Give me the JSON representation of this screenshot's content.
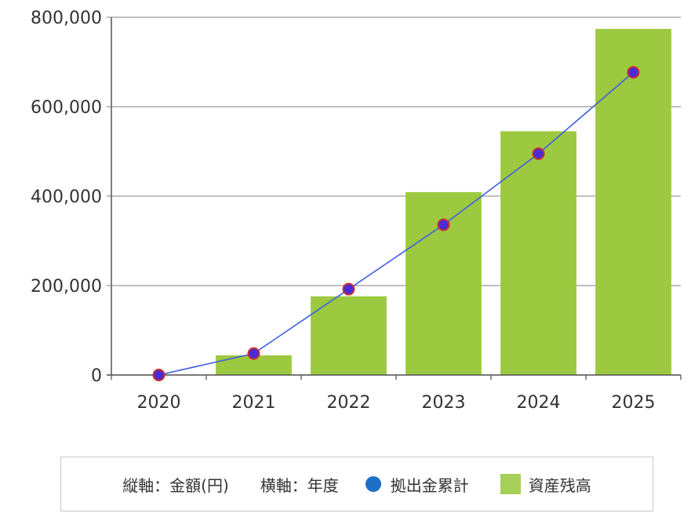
{
  "chart_data": {
    "type": "bar",
    "categories": [
      "2020",
      "2021",
      "2022",
      "2023",
      "2024",
      "2025"
    ],
    "series": [
      {
        "name": "資産残高",
        "kind": "bar",
        "color": "#9dc940",
        "values": [
          0,
          44000,
          176000,
          409000,
          545000,
          774000
        ]
      },
      {
        "name": "拠出金累計",
        "kind": "line",
        "color": "#3f5fe0",
        "marker_color": "#4b2bd6",
        "marker_edge": "#cc2d2d",
        "values": [
          0,
          48000,
          192000,
          336000,
          495000,
          677000
        ]
      }
    ],
    "ylim": [
      0,
      800000
    ],
    "yticks": [
      "0",
      "200,000",
      "400,000",
      "600,000",
      "800,000"
    ],
    "ytick_values": [
      0,
      200000,
      400000,
      600000,
      800000
    ],
    "grid": "horizontal",
    "legend": {
      "placement": "bottom",
      "y_axis_note": "縦軸：金額(円)",
      "x_axis_note": "横軸：年度",
      "line_label": "拠出金累計",
      "line_swatch_color": "#1e6fc8",
      "bar_label": "資産残高",
      "bar_swatch_color": "#a7d05a"
    }
  }
}
